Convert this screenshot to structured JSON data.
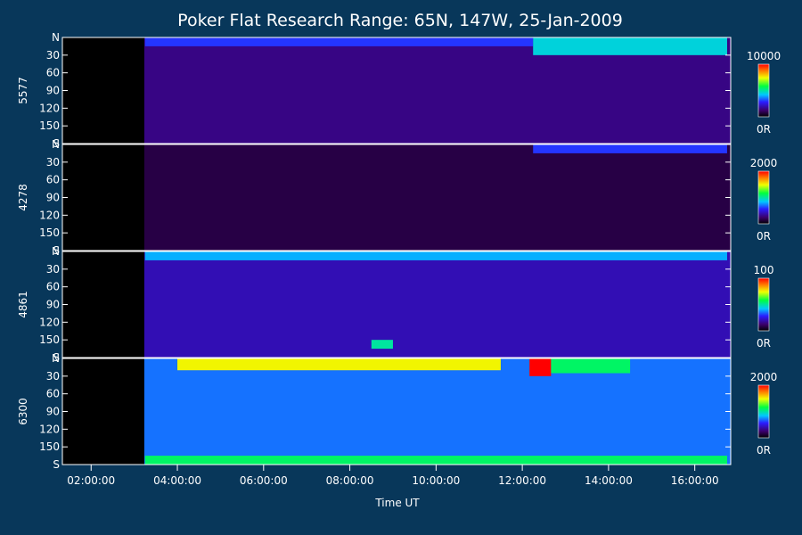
{
  "chart_data": {
    "type": "heatmap",
    "title": "Poker Flat Research Range: 65N, 147W, 25-Jan-2009",
    "xlabel": "Time UT",
    "xlim": [
      "01:20:00",
      "16:50:00"
    ],
    "x_ticks": [
      "02:00:00",
      "04:00:00",
      "06:00:00",
      "08:00:00",
      "10:00:00",
      "12:00:00",
      "14:00:00",
      "16:00:00"
    ],
    "y_ticks": [
      "N",
      "30",
      "60",
      "90",
      "120",
      "150",
      "S"
    ],
    "y_range": [
      0,
      180
    ],
    "data_start": "03:14:00",
    "panels": [
      {
        "name": "5577",
        "scale_max_label": "10000",
        "scale_min_label": "0R",
        "scale_max": 10000,
        "baseline": 0.15,
        "features": [
          {
            "t_start": "03:15:00",
            "t_end": "12:15:00",
            "angle_start": 0,
            "angle_end": 15,
            "intensity": 0.3
          },
          {
            "t_start": "12:15:00",
            "t_end": "16:45:00",
            "angle_start": 0,
            "angle_end": 30,
            "intensity": 0.45
          }
        ]
      },
      {
        "name": "4278",
        "scale_max_label": "2000",
        "scale_min_label": "0R",
        "scale_max": 2000,
        "baseline": 0.08,
        "features": [
          {
            "t_start": "12:15:00",
            "t_end": "16:45:00",
            "angle_start": 0,
            "angle_end": 15,
            "intensity": 0.3
          }
        ]
      },
      {
        "name": "4861",
        "scale_max_label": "100",
        "scale_min_label": "0R",
        "scale_max": 100,
        "baseline": 0.2,
        "features": [
          {
            "t_start": "03:15:00",
            "t_end": "16:45:00",
            "angle_start": 0,
            "angle_end": 15,
            "intensity": 0.4
          },
          {
            "t_start": "08:30:00",
            "t_end": "09:00:00",
            "angle_start": 150,
            "angle_end": 165,
            "intensity": 0.5
          }
        ]
      },
      {
        "name": "6300",
        "scale_max_label": "2000",
        "scale_min_label": "0R",
        "scale_max": 2000,
        "baseline": 0.35,
        "features": [
          {
            "t_start": "04:00:00",
            "t_end": "11:30:00",
            "angle_start": 0,
            "angle_end": 20,
            "intensity": 0.75
          },
          {
            "t_start": "12:10:00",
            "t_end": "12:40:00",
            "angle_start": 0,
            "angle_end": 30,
            "intensity": 1.0
          },
          {
            "t_start": "12:40:00",
            "t_end": "14:30:00",
            "angle_start": 0,
            "angle_end": 25,
            "intensity": 0.55
          },
          {
            "t_start": "03:15:00",
            "t_end": "16:45:00",
            "angle_start": 165,
            "angle_end": 180,
            "intensity": 0.55
          }
        ]
      }
    ]
  }
}
